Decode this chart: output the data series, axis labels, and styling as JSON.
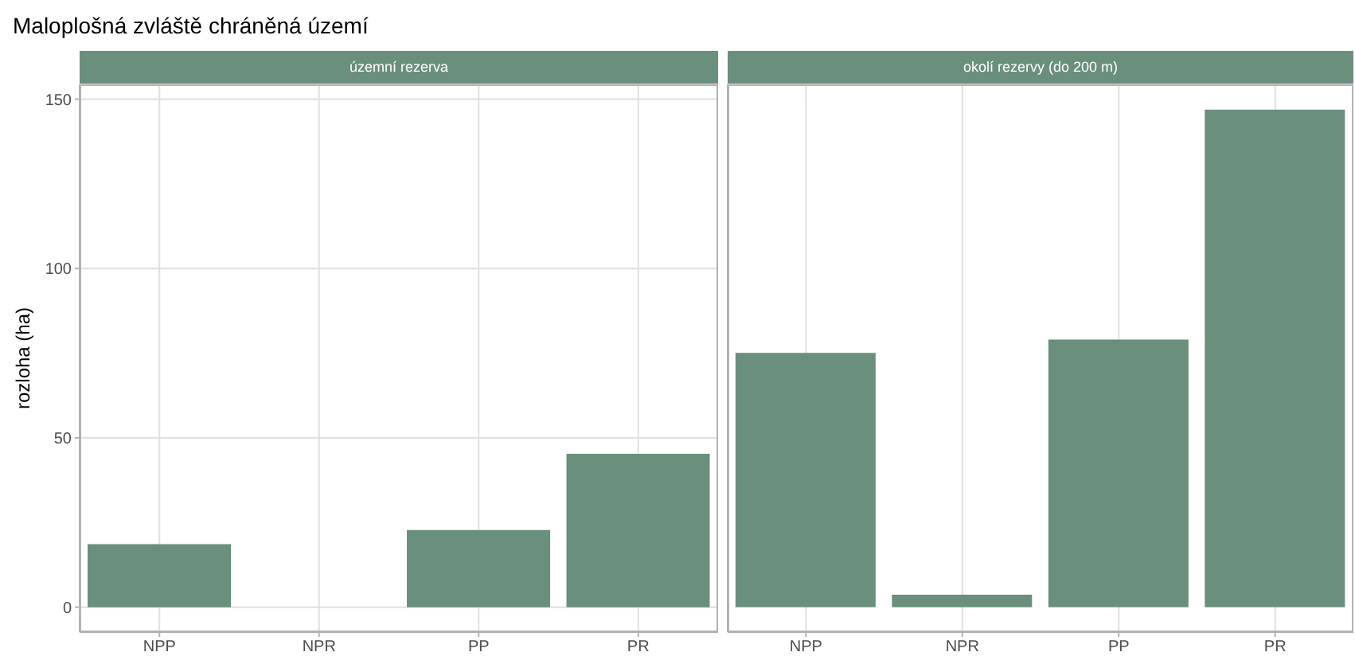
{
  "chart_data": [
    {
      "type": "bar",
      "title": "Maloplošná zvláště chráněná území",
      "subtitle": "územní rezerva",
      "ylabel": "rozloha (ha)",
      "categories": [
        "NPP",
        "NPR",
        "PP",
        "PR"
      ],
      "values": [
        18.6,
        0,
        22.8,
        45.3
      ],
      "color": "#6b8f7d",
      "ylim": [
        -7.35,
        154.35
      ],
      "yticks": [
        0,
        50,
        100,
        150
      ],
      "grid": true
    },
    {
      "type": "bar",
      "subtitle": "okolí rezervy (do 200 m)",
      "categories": [
        "NPP",
        "NPR",
        "PP",
        "PR"
      ],
      "values": [
        75.1,
        3.7,
        79.0,
        146.9
      ],
      "color": "#6b8f7d",
      "ylim": [
        -7.35,
        154.35
      ],
      "yticks": [
        0,
        50,
        100,
        150
      ],
      "grid": true,
      "tick_labels": "x"
    }
  ]
}
